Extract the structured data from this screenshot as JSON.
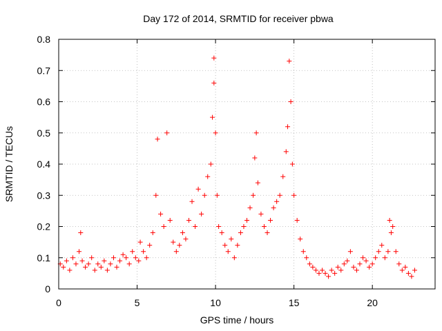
{
  "chart_data": {
    "type": "scatter",
    "title": "Day 172 of 2014, SRMTID for receiver pbwa",
    "xlabel": "GPS time / hours",
    "ylabel": "SRMTID / TECUs",
    "xlim": [
      0,
      24
    ],
    "ylim": [
      0,
      0.8
    ],
    "x_ticks": [
      0,
      5,
      10,
      15,
      20
    ],
    "y_ticks": [
      0,
      0.1,
      0.2,
      0.3,
      0.4,
      0.5,
      0.6,
      0.7,
      0.8
    ],
    "x_tick_labels": [
      "0",
      "5",
      "10",
      "15",
      "20"
    ],
    "y_tick_labels": [
      "0",
      "0.1",
      "0.2",
      "0.3",
      "0.4",
      "0.5",
      "0.6",
      "0.7",
      "0.8"
    ],
    "grid": true,
    "marker": "+",
    "series": [
      {
        "name": "SRMTID",
        "color": "#ff0000",
        "x": [
          0.1,
          0.3,
          0.5,
          0.7,
          0.9,
          1.1,
          1.3,
          1.4,
          1.5,
          1.7,
          1.9,
          2.1,
          2.3,
          2.5,
          2.7,
          2.9,
          3.1,
          3.3,
          3.5,
          3.7,
          3.9,
          4.1,
          4.3,
          4.5,
          4.7,
          4.9,
          5.1,
          5.2,
          5.4,
          5.6,
          5.8,
          6.0,
          6.2,
          6.3,
          6.5,
          6.7,
          6.9,
          7.1,
          7.3,
          7.5,
          7.7,
          7.9,
          8.1,
          8.3,
          8.5,
          8.7,
          8.9,
          9.1,
          9.3,
          9.5,
          9.7,
          9.8,
          9.9,
          9.9,
          10.0,
          10.1,
          10.2,
          10.4,
          10.6,
          10.8,
          11.0,
          11.2,
          11.4,
          11.6,
          11.8,
          12.0,
          12.2,
          12.4,
          12.5,
          12.6,
          12.7,
          12.9,
          13.1,
          13.3,
          13.5,
          13.7,
          13.9,
          14.1,
          14.3,
          14.5,
          14.6,
          14.7,
          14.8,
          14.9,
          15.0,
          15.2,
          15.4,
          15.6,
          15.8,
          16.0,
          16.2,
          16.4,
          16.6,
          16.8,
          17.0,
          17.2,
          17.4,
          17.6,
          17.8,
          18.0,
          18.2,
          18.4,
          18.6,
          18.8,
          19.0,
          19.2,
          19.4,
          19.6,
          19.8,
          20.0,
          20.2,
          20.4,
          20.6,
          20.8,
          21.0,
          21.1,
          21.2,
          21.3,
          21.5,
          21.7,
          21.9,
          22.1,
          22.3,
          22.5,
          22.7
        ],
        "y": [
          0.08,
          0.07,
          0.09,
          0.06,
          0.1,
          0.08,
          0.12,
          0.18,
          0.09,
          0.07,
          0.08,
          0.1,
          0.06,
          0.08,
          0.07,
          0.09,
          0.06,
          0.08,
          0.1,
          0.07,
          0.09,
          0.11,
          0.1,
          0.08,
          0.12,
          0.1,
          0.09,
          0.15,
          0.12,
          0.1,
          0.14,
          0.18,
          0.3,
          0.48,
          0.24,
          0.2,
          0.5,
          0.22,
          0.15,
          0.12,
          0.14,
          0.18,
          0.16,
          0.22,
          0.28,
          0.2,
          0.32,
          0.24,
          0.3,
          0.36,
          0.4,
          0.55,
          0.66,
          0.74,
          0.5,
          0.3,
          0.2,
          0.18,
          0.14,
          0.12,
          0.16,
          0.1,
          0.14,
          0.18,
          0.2,
          0.22,
          0.26,
          0.3,
          0.42,
          0.5,
          0.34,
          0.24,
          0.2,
          0.18,
          0.22,
          0.26,
          0.28,
          0.3,
          0.36,
          0.44,
          0.52,
          0.73,
          0.6,
          0.4,
          0.3,
          0.22,
          0.16,
          0.12,
          0.1,
          0.08,
          0.07,
          0.06,
          0.05,
          0.06,
          0.05,
          0.04,
          0.06,
          0.05,
          0.07,
          0.06,
          0.08,
          0.09,
          0.12,
          0.07,
          0.06,
          0.08,
          0.1,
          0.09,
          0.07,
          0.08,
          0.1,
          0.12,
          0.14,
          0.1,
          0.12,
          0.22,
          0.18,
          0.2,
          0.12,
          0.08,
          0.06,
          0.07,
          0.05,
          0.04,
          0.06
        ]
      }
    ]
  }
}
